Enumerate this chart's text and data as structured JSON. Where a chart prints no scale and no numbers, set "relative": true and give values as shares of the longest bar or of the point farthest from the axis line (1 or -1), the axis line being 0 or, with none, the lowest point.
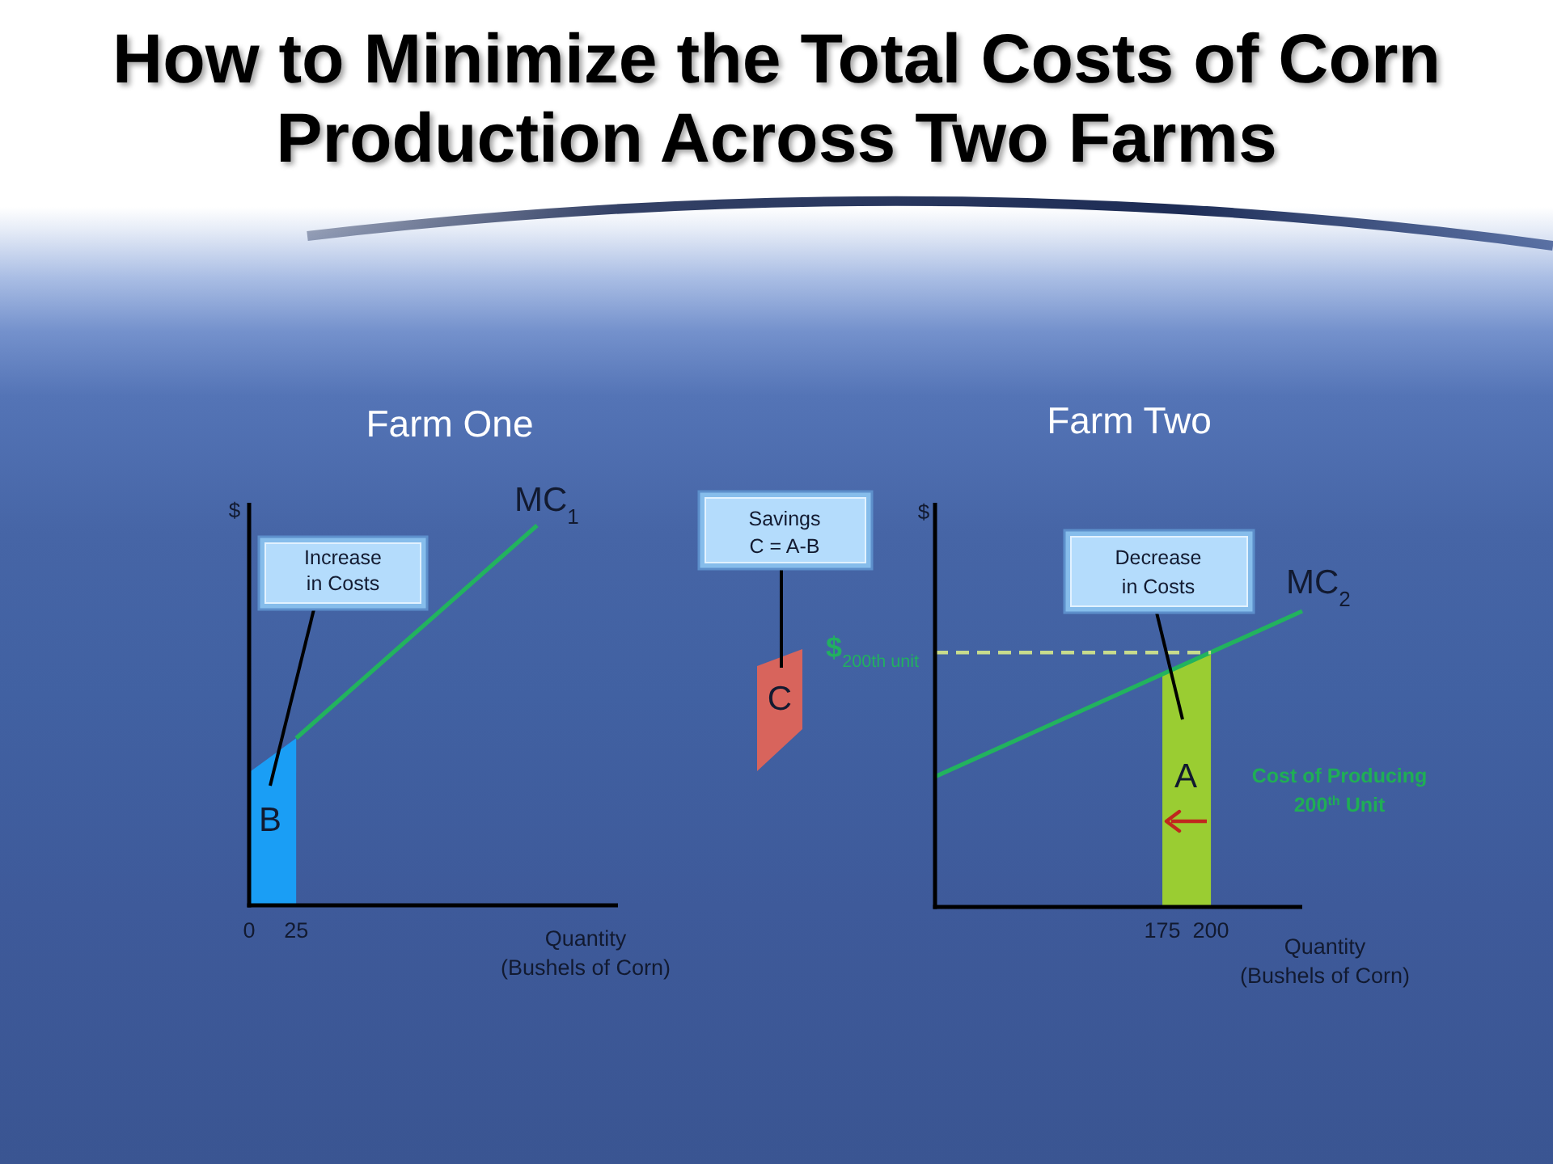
{
  "chart_data": [
    {
      "type": "line",
      "title": "How to Minimize the Total Costs of Corn Production Across Two Farms",
      "subtitle": "Farm One",
      "xlabel": "Quantity\n(Bushels of Corn)",
      "ylabel": "$",
      "relative": true,
      "xlim": [
        0,
        196
      ],
      "xticks": [
        0,
        25
      ],
      "series": [
        {
          "name": "MC$_{1}$",
          "color": "#22b35e",
          "x": [
            25,
            153
          ],
          "values": [
            0.44,
            1
          ]
        },
        {
          "type": "area",
          "color": "#1a9ef5",
          "x": [
            0,
            25
          ],
          "values": [
            0.35,
            0.44
          ]
        }
      ],
      "annotations": [
        "Increase\nin Costs",
        "B"
      ]
    },
    {
      "type": "line",
      "subtitle": "Farm Two",
      "xlabel": "Quantity\n(Bushels of Corn)",
      "ylabel": "$",
      "relative": true,
      "xlim": [
        58,
        247
      ],
      "xticks": [
        175,
        200
      ],
      "series": [
        {
          "name": "MC$_{2}$",
          "color": "#22b35e",
          "x": [
            58,
            247
          ],
          "values": [
            0.44,
            1
          ]
        },
        {
          "type": "area",
          "color": "#9acd32",
          "x": [
            175,
            200
          ],
          "values": [
            0.79,
            0.86
          ]
        },
        {
          "line_style": "dashed",
          "color": "#c8dc8c",
          "x": [
            58,
            200
          ],
          "values": [
            0.86,
            0.86
          ]
        }
      ],
      "annotations": [
        "Savings\nC = A-B",
        "C",
        "Decrease\nin Costs",
        "A",
        "Cost of Producing\n200$^{th}$ Unit",
        {
          "text": "$$_{200th unit}$",
          "x": 58,
          "y": 0.86
        }
      ]
    }
  ]
}
